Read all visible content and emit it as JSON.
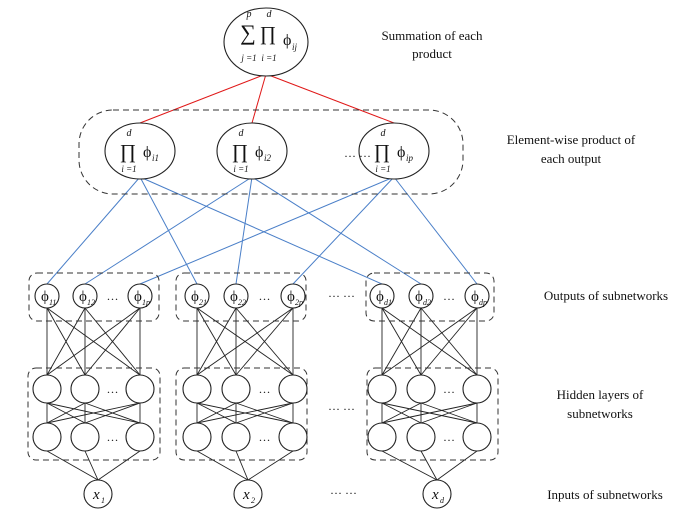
{
  "labels": {
    "summation": [
      "Summation of each",
      "product"
    ],
    "elementwise": [
      "Element-wise product of",
      "each output"
    ],
    "outputs": "Outputs of subnetworks",
    "hidden": [
      "Hidden layers of",
      "subnetworks"
    ],
    "inputs": "Inputs of subnetworks"
  },
  "sum_node": {
    "sum_upper": "p",
    "sum_lower": "j =1",
    "prod_upper": "d",
    "prod_lower": "i =1",
    "phi_sub": "ij"
  },
  "product_nodes": [
    {
      "upper": "d",
      "lower": "i =1",
      "phi_sub": "i1"
    },
    {
      "upper": "d",
      "lower": "i =1",
      "phi_sub": "i2"
    },
    {
      "upper": "d",
      "lower": "i =1",
      "phi_sub": "ip"
    }
  ],
  "product_gap_dots": "···  ···",
  "subnetworks": [
    {
      "outputs": [
        "11",
        "12",
        "1p"
      ],
      "input_sub": "1"
    },
    {
      "outputs": [
        "21",
        "22",
        "2p"
      ],
      "input_sub": "2"
    },
    {
      "outputs": [
        "d1",
        "d2",
        "dp"
      ],
      "input_sub": "d"
    }
  ],
  "ellipsis": "…",
  "between_dots": "···   ···",
  "input_gap_dots": "···   ···",
  "input_symbol": "x",
  "phi_symbol": "ϕ",
  "sum_symbol": "∑",
  "prod_symbol": "∏",
  "colors": {
    "connection_to_sum": "#e01818",
    "connection_to_products": "#4a7fc8",
    "network_edges": "#222222"
  }
}
